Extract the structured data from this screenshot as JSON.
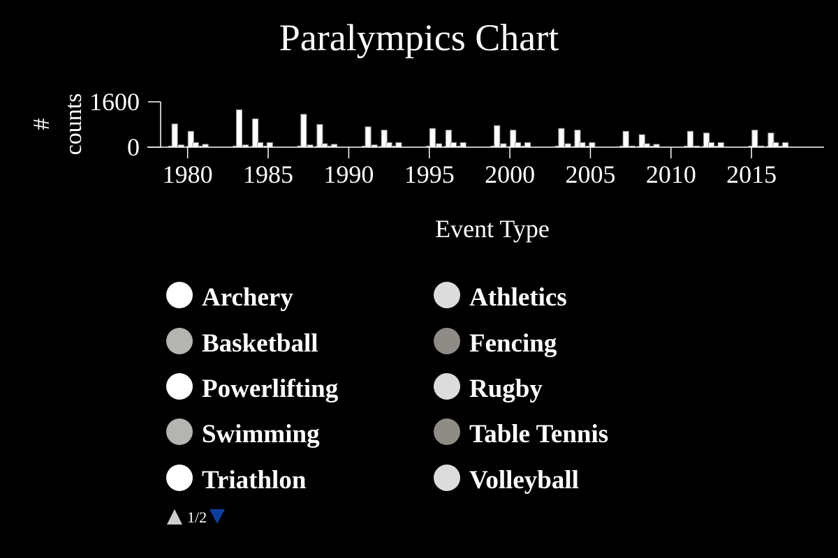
{
  "chart_data": {
    "type": "bar",
    "title": "Paralympics Chart",
    "xlabel": "Event Type",
    "ylabel_lines": [
      "#",
      "counts"
    ],
    "x_ticks": [
      1980,
      1985,
      1990,
      1995,
      2000,
      2005,
      2010,
      2015
    ],
    "x_range": [
      1977.5,
      2019.5
    ],
    "y_ticks": [
      0,
      1600
    ],
    "ylim": [
      0,
      1600
    ],
    "grid": false,
    "legend_position": "bottom",
    "legend_page": "1/2",
    "series": [
      {
        "name": "Archery",
        "color": "#ffffff"
      },
      {
        "name": "Athletics",
        "color": "#dcdcdc"
      },
      {
        "name": "Basketball",
        "color": "#b4b4b0"
      },
      {
        "name": "Fencing",
        "color": "#8f8b86"
      },
      {
        "name": "Powerlifting",
        "color": "#ffffff"
      },
      {
        "name": "Rugby",
        "color": "#dcdcdc"
      },
      {
        "name": "Swimming",
        "color": "#b4b4b0"
      },
      {
        "name": "Table Tennis",
        "color": "#8f8b86"
      },
      {
        "name": "Triathlon",
        "color": "#ffffff"
      },
      {
        "name": "Volleyball",
        "color": "#dcdcdc"
      }
    ],
    "bars": [
      {
        "x": 1979.0,
        "value": 40
      },
      {
        "x": 1979.2,
        "value": 820
      },
      {
        "x": 1979.6,
        "value": 80
      },
      {
        "x": 1980.1,
        "value": 30
      },
      {
        "x": 1980.2,
        "value": 560
      },
      {
        "x": 1980.5,
        "value": 160
      },
      {
        "x": 1980.9,
        "value": 40
      },
      {
        "x": 1981.1,
        "value": 100
      },
      {
        "x": 1983.0,
        "value": 40
      },
      {
        "x": 1983.2,
        "value": 1320
      },
      {
        "x": 1983.6,
        "value": 80
      },
      {
        "x": 1984.1,
        "value": 30
      },
      {
        "x": 1984.2,
        "value": 1000
      },
      {
        "x": 1984.5,
        "value": 160
      },
      {
        "x": 1984.9,
        "value": 40
      },
      {
        "x": 1985.1,
        "value": 160
      },
      {
        "x": 1987.0,
        "value": 40
      },
      {
        "x": 1987.2,
        "value": 1160
      },
      {
        "x": 1987.6,
        "value": 80
      },
      {
        "x": 1988.1,
        "value": 30
      },
      {
        "x": 1988.2,
        "value": 800
      },
      {
        "x": 1988.5,
        "value": 120
      },
      {
        "x": 1988.9,
        "value": 40
      },
      {
        "x": 1989.1,
        "value": 100
      },
      {
        "x": 1991.0,
        "value": 40
      },
      {
        "x": 1991.2,
        "value": 720
      },
      {
        "x": 1991.6,
        "value": 80
      },
      {
        "x": 1992.1,
        "value": 30
      },
      {
        "x": 1992.2,
        "value": 600
      },
      {
        "x": 1992.5,
        "value": 160
      },
      {
        "x": 1992.9,
        "value": 40
      },
      {
        "x": 1993.1,
        "value": 160
      },
      {
        "x": 1995.0,
        "value": 40
      },
      {
        "x": 1995.2,
        "value": 660
      },
      {
        "x": 1995.6,
        "value": 120
      },
      {
        "x": 1996.1,
        "value": 30
      },
      {
        "x": 1996.2,
        "value": 600
      },
      {
        "x": 1996.5,
        "value": 160
      },
      {
        "x": 1996.9,
        "value": 40
      },
      {
        "x": 1997.1,
        "value": 160
      },
      {
        "x": 1999.0,
        "value": 40
      },
      {
        "x": 1999.2,
        "value": 760
      },
      {
        "x": 1999.6,
        "value": 120
      },
      {
        "x": 2000.1,
        "value": 30
      },
      {
        "x": 2000.2,
        "value": 600
      },
      {
        "x": 2000.5,
        "value": 160
      },
      {
        "x": 2000.9,
        "value": 40
      },
      {
        "x": 2001.1,
        "value": 160
      },
      {
        "x": 2003.0,
        "value": 40
      },
      {
        "x": 2003.2,
        "value": 660
      },
      {
        "x": 2003.6,
        "value": 120
      },
      {
        "x": 2004.1,
        "value": 30
      },
      {
        "x": 2004.2,
        "value": 600
      },
      {
        "x": 2004.5,
        "value": 160
      },
      {
        "x": 2004.9,
        "value": 40
      },
      {
        "x": 2005.1,
        "value": 160
      },
      {
        "x": 2007.0,
        "value": 40
      },
      {
        "x": 2007.2,
        "value": 560
      },
      {
        "x": 2007.6,
        "value": 40
      },
      {
        "x": 2008.1,
        "value": 30
      },
      {
        "x": 2008.2,
        "value": 440
      },
      {
        "x": 2008.5,
        "value": 120
      },
      {
        "x": 2008.9,
        "value": 40
      },
      {
        "x": 2009.1,
        "value": 100
      },
      {
        "x": 2011.0,
        "value": 40
      },
      {
        "x": 2011.2,
        "value": 560
      },
      {
        "x": 2011.6,
        "value": 40
      },
      {
        "x": 2012.1,
        "value": 30
      },
      {
        "x": 2012.2,
        "value": 500
      },
      {
        "x": 2012.5,
        "value": 160
      },
      {
        "x": 2012.9,
        "value": 40
      },
      {
        "x": 2013.1,
        "value": 160
      },
      {
        "x": 2015.0,
        "value": 40
      },
      {
        "x": 2015.2,
        "value": 600
      },
      {
        "x": 2015.6,
        "value": 40
      },
      {
        "x": 2016.1,
        "value": 30
      },
      {
        "x": 2016.2,
        "value": 500
      },
      {
        "x": 2016.5,
        "value": 160
      },
      {
        "x": 2016.9,
        "value": 40
      },
      {
        "x": 2017.1,
        "value": 160
      }
    ]
  },
  "legend_pager": {
    "label": "1/2",
    "up_color": "#cccccc",
    "down_color": "#0a3fa0"
  }
}
